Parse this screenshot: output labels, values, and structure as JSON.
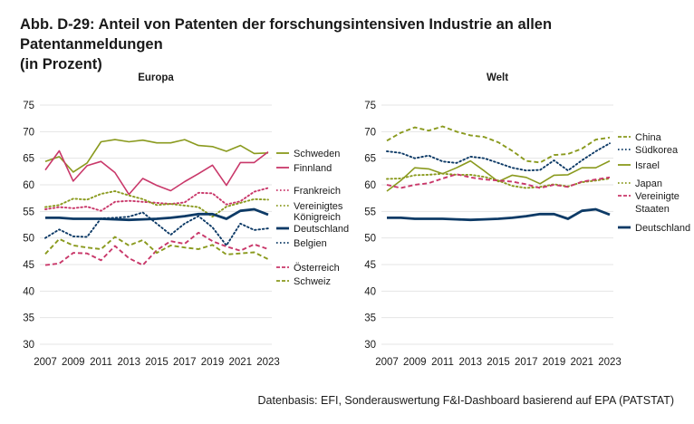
{
  "figure": {
    "title_line1": "Abb. D-29: Anteil von Patenten der forschungsintensiven Industrie an allen Patentanmeldungen",
    "title_line2": "(in Prozent)",
    "source": "Datenbasis: EFI, Sonderauswertung F&I-Dashboard basierend auf EPA (PATSTAT)"
  },
  "chart_data": [
    {
      "type": "line",
      "title": "Europa",
      "x": [
        2007,
        2008,
        2009,
        2010,
        2011,
        2012,
        2013,
        2014,
        2015,
        2016,
        2017,
        2018,
        2019,
        2020,
        2021,
        2022,
        2023
      ],
      "x_ticks": [
        "2007",
        "2009",
        "2011",
        "2013",
        "2015",
        "2017",
        "2019",
        "2021",
        "2023"
      ],
      "y_ticks": [
        "30",
        "35",
        "40",
        "45",
        "50",
        "55",
        "60",
        "65",
        "70",
        "75"
      ],
      "ylim": [
        30,
        75
      ],
      "grid": true,
      "legend_position": "right",
      "series": [
        {
          "name": "Schweden",
          "color": "#8a9a1e",
          "style": "solid",
          "values": [
            64.4,
            65.3,
            62.4,
            64.1,
            68.1,
            68.5,
            68.1,
            68.4,
            67.9,
            67.9,
            68.5,
            67.4,
            67.2,
            66.3,
            67.4,
            65.9,
            66.0
          ]
        },
        {
          "name": "Finnland",
          "color": "#c9386a",
          "style": "solid",
          "values": [
            62.8,
            66.4,
            60.7,
            63.6,
            64.4,
            62.3,
            58.2,
            61.2,
            59.9,
            58.9,
            60.6,
            62.1,
            63.7,
            59.9,
            64.2,
            64.2,
            66.2
          ]
        },
        {
          "name": "Frankreich",
          "color": "#c9386a",
          "style": "dotted",
          "values": [
            55.4,
            55.8,
            55.6,
            55.9,
            55.1,
            56.8,
            57.0,
            56.8,
            56.6,
            56.4,
            56.7,
            58.5,
            58.4,
            56.3,
            56.9,
            58.7,
            59.4
          ]
        },
        {
          "name": "Vereinigtes Königreich",
          "label_lines": [
            "Vereinigtes",
            "Königreich"
          ],
          "color": "#8a9a1e",
          "style": "dotted",
          "values": [
            55.8,
            56.2,
            57.4,
            57.2,
            58.3,
            58.8,
            58.0,
            57.3,
            56.2,
            56.4,
            56.1,
            55.8,
            54.0,
            55.9,
            56.6,
            57.3,
            57.2
          ]
        },
        {
          "name": "Deutschland",
          "color": "#0d3a66",
          "style": "solid-thick",
          "values": [
            53.8,
            53.8,
            53.6,
            53.6,
            53.6,
            53.5,
            53.4,
            53.5,
            53.6,
            53.8,
            54.1,
            54.5,
            54.5,
            53.6,
            55.1,
            55.4,
            54.4
          ]
        },
        {
          "name": "Belgien",
          "color": "#0d3a66",
          "style": "dotted",
          "values": [
            50.0,
            51.6,
            50.3,
            50.2,
            53.7,
            53.8,
            54.0,
            54.8,
            52.7,
            50.6,
            52.7,
            54.1,
            52.0,
            48.6,
            52.7,
            51.5,
            51.8
          ]
        },
        {
          "name": "Österreich",
          "color": "#c9386a",
          "style": "dashed",
          "values": [
            44.9,
            45.2,
            47.2,
            47.1,
            45.8,
            48.5,
            46.2,
            44.9,
            47.7,
            49.4,
            48.9,
            51.0,
            49.4,
            48.4,
            47.6,
            48.8,
            47.9
          ]
        },
        {
          "name": "Schweiz",
          "color": "#8a9a1e",
          "style": "dashed",
          "values": [
            47.0,
            49.8,
            48.6,
            48.2,
            47.9,
            50.2,
            48.6,
            49.6,
            47.2,
            48.6,
            48.2,
            47.9,
            48.7,
            46.9,
            47.1,
            47.3,
            46.0
          ]
        }
      ]
    },
    {
      "type": "line",
      "title": "Welt",
      "x": [
        2007,
        2008,
        2009,
        2010,
        2011,
        2012,
        2013,
        2014,
        2015,
        2016,
        2017,
        2018,
        2019,
        2020,
        2021,
        2022,
        2023
      ],
      "x_ticks": [
        "2007",
        "2009",
        "2011",
        "2013",
        "2015",
        "2017",
        "2019",
        "2021",
        "2023"
      ],
      "y_ticks": [
        "30",
        "35",
        "40",
        "45",
        "50",
        "55",
        "60",
        "65",
        "70",
        "75"
      ],
      "ylim": [
        30,
        75
      ],
      "grid": true,
      "legend_position": "right",
      "series": [
        {
          "name": "China",
          "color": "#8a9a1e",
          "style": "dashed",
          "values": [
            68.3,
            69.8,
            70.8,
            70.2,
            71.0,
            70.0,
            69.3,
            69.0,
            68.0,
            66.4,
            64.5,
            64.2,
            65.6,
            65.8,
            66.8,
            68.5,
            68.9
          ]
        },
        {
          "name": "Südkorea",
          "color": "#0d3a66",
          "style": "dotted",
          "values": [
            66.3,
            66.0,
            65.0,
            65.5,
            64.4,
            64.1,
            65.3,
            65.0,
            64.1,
            63.2,
            62.7,
            62.8,
            64.6,
            62.7,
            64.6,
            66.3,
            67.8
          ]
        },
        {
          "name": "Israel",
          "color": "#8a9a1e",
          "style": "solid",
          "values": [
            58.8,
            60.8,
            63.2,
            63.0,
            62.1,
            63.2,
            64.5,
            62.6,
            60.6,
            61.8,
            61.4,
            60.2,
            61.8,
            61.9,
            63.2,
            63.2,
            64.5
          ]
        },
        {
          "name": "Japan",
          "color": "#8a9a1e",
          "style": "dotted",
          "values": [
            61.1,
            61.2,
            61.8,
            61.9,
            62.1,
            61.9,
            61.9,
            61.5,
            60.8,
            59.8,
            59.4,
            59.6,
            60.1,
            59.7,
            60.5,
            60.8,
            61.2
          ]
        },
        {
          "name": "Vereinigte Staaten",
          "label_lines": [
            "Vereinigte",
            "Staaten"
          ],
          "color": "#c9386a",
          "style": "dashed",
          "values": [
            60.0,
            59.4,
            60.0,
            60.3,
            61.2,
            62.0,
            61.4,
            61.0,
            60.8,
            60.6,
            60.1,
            59.4,
            60.0,
            59.6,
            60.6,
            61.0,
            61.4
          ]
        },
        {
          "name": "Deutschland",
          "color": "#0d3a66",
          "style": "solid-thick",
          "values": [
            53.8,
            53.8,
            53.6,
            53.6,
            53.6,
            53.5,
            53.4,
            53.5,
            53.6,
            53.8,
            54.1,
            54.5,
            54.5,
            53.6,
            55.1,
            55.4,
            54.4
          ]
        }
      ]
    }
  ]
}
